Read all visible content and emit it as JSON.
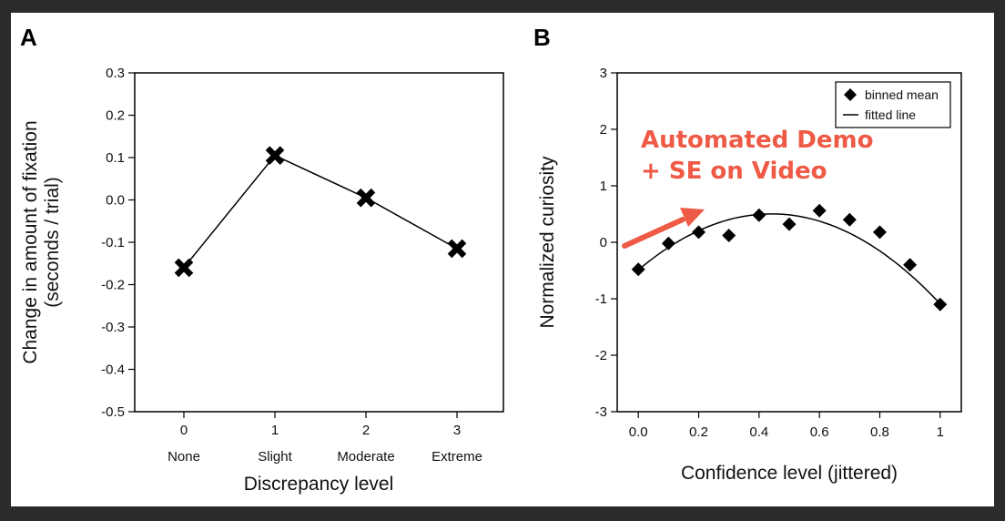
{
  "chart_data": [
    {
      "panel": "A",
      "type": "line",
      "x": [
        0,
        1,
        2,
        3
      ],
      "xtick_labels": [
        "0",
        "1",
        "2",
        "3"
      ],
      "category_labels": [
        "None",
        "Slight",
        "Moderate",
        "Extreme"
      ],
      "values": [
        -0.16,
        0.105,
        0.005,
        -0.115
      ],
      "xlabel": "Discrepancy level",
      "ylabel_line1": "Change in amount of fixation",
      "ylabel_line2": "(seconds / trial)",
      "ylim": [
        -0.5,
        0.3
      ],
      "yticks": [
        0.3,
        0.2,
        0.1,
        0.0,
        -0.1,
        -0.2,
        -0.3,
        -0.4,
        -0.5
      ],
      "ytick_labels": [
        "0.3",
        "0.2",
        "0.1",
        "0.0",
        "-0.1",
        "-0.2",
        "-0.3",
        "-0.4",
        "-0.5"
      ],
      "marker": "x"
    },
    {
      "panel": "B",
      "type": "scatter",
      "x": [
        0.0,
        0.1,
        0.2,
        0.3,
        0.4,
        0.5,
        0.6,
        0.7,
        0.8,
        0.9,
        1.0
      ],
      "values": [
        -0.48,
        -0.02,
        0.18,
        0.12,
        0.48,
        0.32,
        0.56,
        0.4,
        0.18,
        -0.4,
        -1.1
      ],
      "fit_coefficients": [
        -0.49,
        4.5,
        -5.1
      ],
      "xlabel": "Confidence level (jittered)",
      "ylabel": "Normalized curiosity",
      "xlim": [
        -0.07,
        1.07
      ],
      "ylim": [
        -3,
        3
      ],
      "xticks": [
        0.0,
        0.2,
        0.4,
        0.6,
        0.8,
        1.0
      ],
      "xtick_labels": [
        "0.0",
        "0.2",
        "0.4",
        "0.6",
        "0.8",
        "1"
      ],
      "yticks": [
        3,
        2,
        1,
        0,
        -1,
        -2,
        -3
      ],
      "ytick_labels": [
        "3",
        "2",
        "1",
        "0",
        "-1",
        "-2",
        "-3"
      ],
      "legend": [
        "binned mean",
        "fitted line"
      ],
      "legend_position": "top-right"
    }
  ],
  "panel_labels": {
    "a": "A",
    "b": "B"
  },
  "overlay": {
    "line1": "Automated Demo",
    "line2": "+ SE on Video",
    "color": "#ee5a45"
  }
}
